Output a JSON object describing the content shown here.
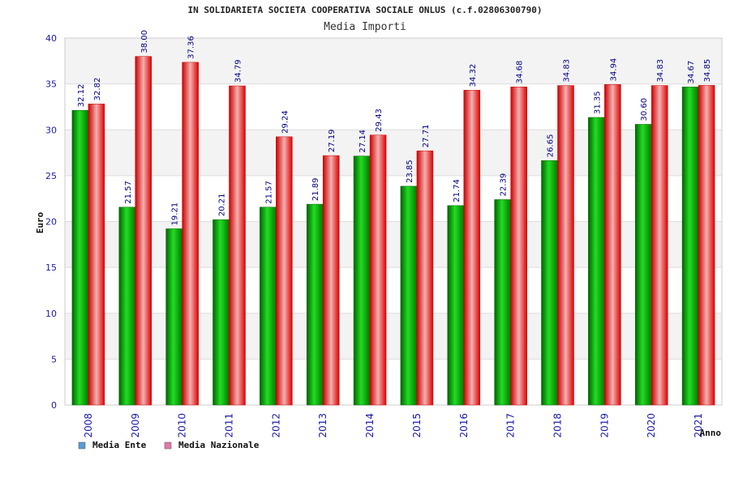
{
  "chart_data": {
    "type": "bar",
    "title": "IN SOLIDARIETA SOCIETA COOPERATIVA SOCIALE ONLUS (c.f.02806300790)",
    "subtitle": "Media Importi",
    "xlabel": "Anno",
    "ylabel": "Euro",
    "ylim": [
      0,
      40
    ],
    "yticks": [
      "0",
      "5",
      "10",
      "15",
      "20",
      "25",
      "30",
      "35",
      "40"
    ],
    "categories": [
      "2008",
      "2009",
      "2010",
      "2011",
      "2012",
      "2013",
      "2014",
      "2015",
      "2016",
      "2017",
      "2018",
      "2019",
      "2020",
      "2021"
    ],
    "series": [
      {
        "name": "Media Ente",
        "values": [
          32.12,
          21.57,
          19.21,
          20.21,
          21.57,
          21.89,
          27.14,
          23.85,
          21.74,
          22.39,
          26.65,
          31.35,
          30.6,
          34.67
        ],
        "labels": [
          "32.12",
          "21.57",
          "19.21",
          "20.21",
          "21.57",
          "21.89",
          "27.14",
          "23.85",
          "21.74",
          "22.39",
          "26.65",
          "31.35",
          "30.60",
          "34.67"
        ]
      },
      {
        "name": "Media Nazionale",
        "values": [
          32.82,
          38.0,
          37.36,
          34.79,
          29.24,
          27.19,
          29.43,
          27.71,
          34.32,
          34.68,
          34.83,
          34.94,
          34.83,
          34.85
        ],
        "labels": [
          "32.82",
          "38.00",
          "37.36",
          "34.79",
          "29.24",
          "27.19",
          "29.43",
          "27.71",
          "34.32",
          "34.68",
          "34.83",
          "34.94",
          "34.83",
          "34.85"
        ]
      }
    ],
    "legend": [
      {
        "label": "Media Ente",
        "color": "#5b9bd5"
      },
      {
        "label": "Media Nazionale",
        "color": "#e07aa8"
      }
    ],
    "colors": {
      "ente_dark": "#006400",
      "ente_light": "#22dd22",
      "naz_dark": "#cc0000",
      "naz_light": "#f4b0b0",
      "band": "#f3f3f3",
      "grid": "#dddddd"
    }
  }
}
